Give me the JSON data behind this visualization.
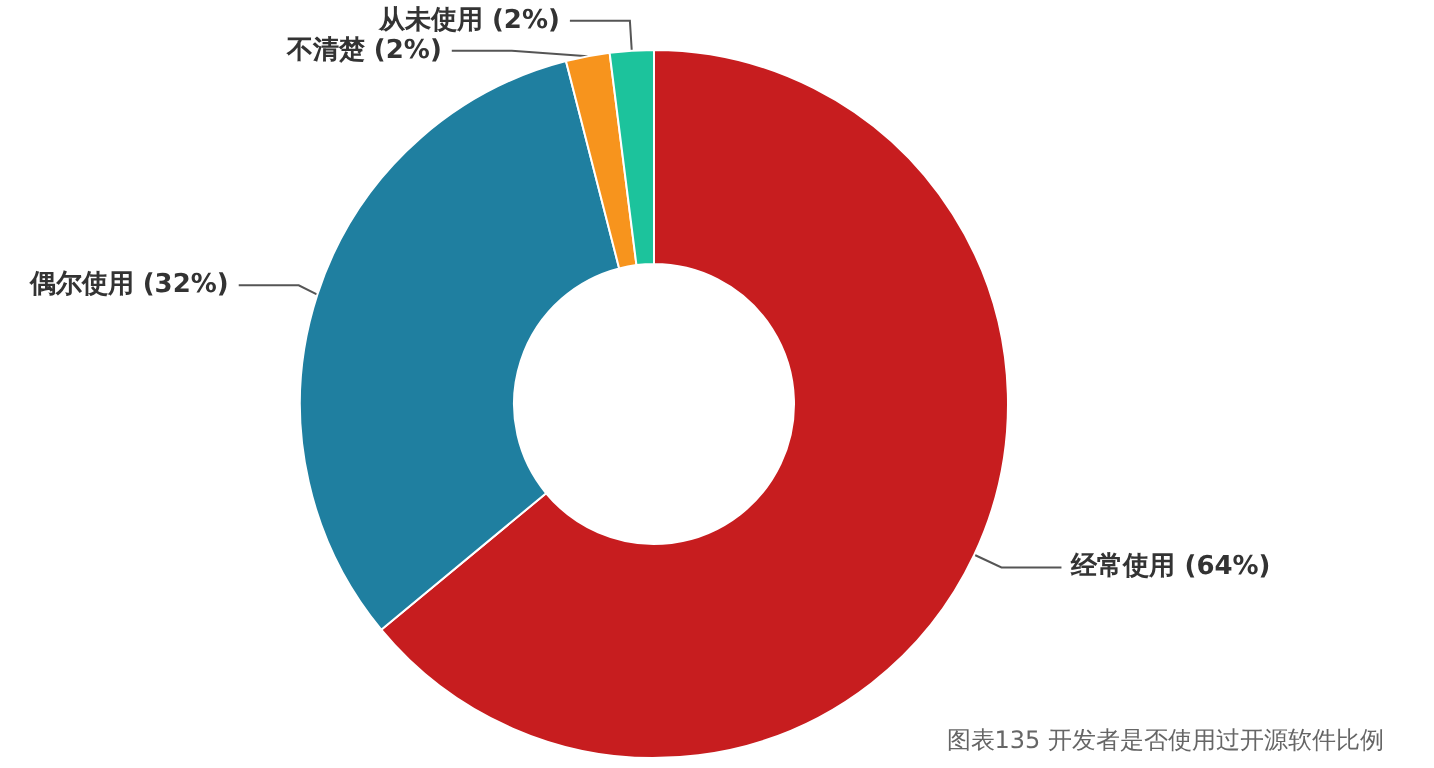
{
  "chart_data": {
    "type": "donut",
    "categories": [
      "经常使用",
      "偶尔使用",
      "不清楚",
      "从未使用"
    ],
    "values": [
      64,
      32,
      2,
      2
    ],
    "value_labels": [
      "(64%)",
      "(32%)",
      "(2%)",
      "(2%)"
    ],
    "colors": [
      "#c71d1f",
      "#1f7fa0",
      "#f7941d",
      "#1cc39c"
    ],
    "annotations": [
      "图表135 开发者是否使用过开源软件比例"
    ]
  }
}
